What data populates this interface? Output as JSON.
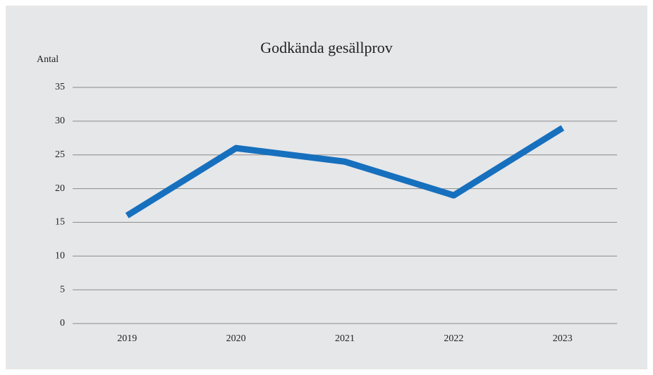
{
  "chart_data": {
    "type": "line",
    "title": "Godkända gesällprov",
    "y_label": "Antal",
    "categories": [
      "2019",
      "2020",
      "2021",
      "2022",
      "2023"
    ],
    "series": [
      {
        "name": "Godkända gesällprov",
        "color": "#1670be",
        "values": [
          16,
          26,
          24,
          19,
          29
        ]
      }
    ],
    "ylim": [
      0,
      35
    ],
    "yticks": [
      0,
      5,
      10,
      15,
      20,
      25,
      30,
      35
    ],
    "grid": true
  }
}
